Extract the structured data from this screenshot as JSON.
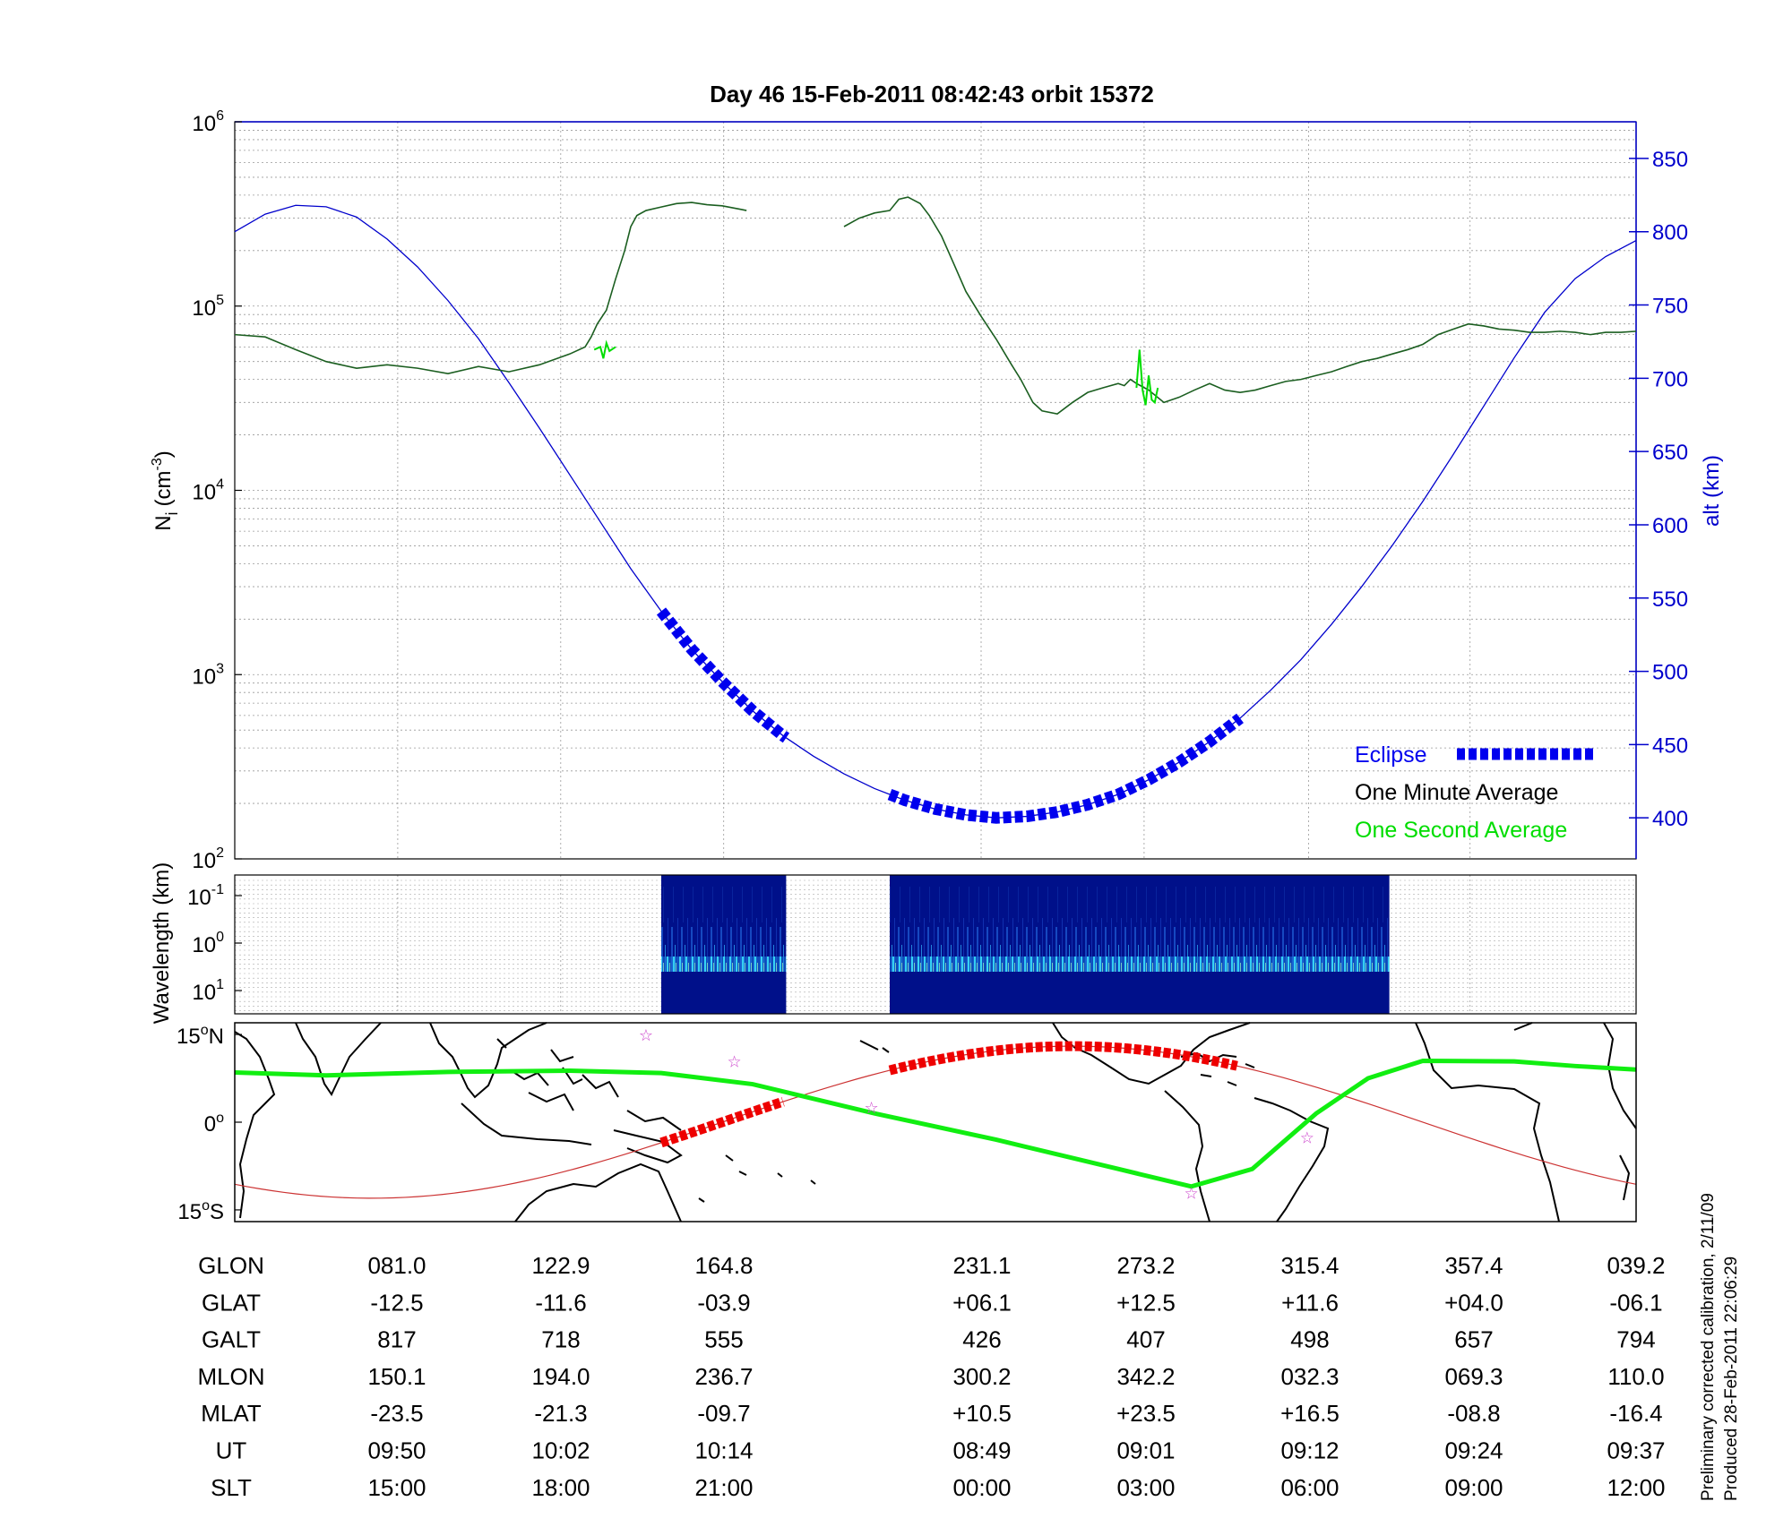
{
  "chart_data": [
    {
      "type": "line",
      "title": "Day 46  15-Feb-2011 08:42:43   orbit 15372",
      "ylabel_left": "N",
      "ylabel_left_sub": "i",
      "ylabel_left_unit_pre": "(cm",
      "ylabel_left_unit_sup": "-3",
      "ylabel_left_unit_post": ")",
      "ylabel_right": "alt (km)",
      "y_left_scale": "log",
      "y_left_range": [
        100,
        1000000
      ],
      "y_left_ticks": [
        {
          "base": "10",
          "exp": "2"
        },
        {
          "base": "10",
          "exp": "3"
        },
        {
          "base": "10",
          "exp": "4"
        },
        {
          "base": "10",
          "exp": "5"
        },
        {
          "base": "10",
          "exp": "6"
        }
      ],
      "y_right_range": [
        372,
        875
      ],
      "y_right_ticks": [
        "400",
        "450",
        "500",
        "550",
        "600",
        "650",
        "700",
        "750",
        "800",
        "850"
      ],
      "grid": true,
      "legend_placement": "bottom-right",
      "legend": [
        {
          "label": "Eclipse",
          "color": "#0000ee"
        },
        {
          "label": "One Minute Average",
          "color": "#000000"
        },
        {
          "label": "One Second Average",
          "color": "#00dd00"
        }
      ],
      "series": [
        {
          "name": "One Minute Average",
          "color": "#1b5e20",
          "segments": [
            {
              "x": [
                0,
                10,
                20,
                30,
                40,
                50,
                60,
                70,
                80,
                90,
                100,
                110,
                115,
                117,
                119,
                122,
                125,
                128,
                130,
                132,
                135,
                140,
                145,
                150,
                155,
                160,
                166,
                168
              ],
              "y": [
                70000,
                68000,
                58000,
                50000,
                46000,
                48000,
                46000,
                43000,
                47000,
                44000,
                48000,
                55000,
                60000,
                68000,
                80000,
                95000,
                140000,
                200000,
                270000,
                310000,
                330000,
                345000,
                360000,
                365000,
                355000,
                350000,
                335000,
                330000
              ]
            },
            {
              "x": [
                200,
                205,
                210,
                215,
                218,
                221,
                225,
                228,
                232,
                236,
                240,
                245,
                250,
                255,
                258,
                262,
                265,
                270,
                275,
                280,
                285,
                290,
                292,
                294,
                296,
                300,
                305,
                310,
                315,
                320,
                325,
                330,
                335,
                340,
                345,
                350,
                355,
                360,
                365,
                370,
                375,
                380,
                385,
                390,
                395,
                400,
                405,
                410,
                415,
                420,
                425,
                430,
                435,
                440,
                445,
                450,
                455,
                460
              ],
              "y": [
                270000,
                300000,
                320000,
                330000,
                380000,
                390000,
                360000,
                310000,
                240000,
                170000,
                120000,
                88000,
                66000,
                48000,
                40000,
                30000,
                27000,
                26000,
                30000,
                34000,
                36000,
                38000,
                37000,
                40000,
                38000,
                35000,
                30000,
                32000,
                35000,
                38000,
                35000,
                34000,
                35000,
                37000,
                39000,
                40000,
                42000,
                44000,
                47000,
                50000,
                52000,
                55000,
                58000,
                62000,
                70000,
                75000,
                80000,
                78000,
                75000,
                74000,
                72000,
                72000,
                73000,
                72000,
                70000,
                72000,
                72000,
                73000
              ]
            }
          ]
        },
        {
          "name": "One Second Average",
          "color": "#00dd00",
          "segments": [
            {
              "x": [
                118,
                120,
                121,
                122,
                123,
                125
              ],
              "y": [
                58000,
                60000,
                52000,
                63000,
                57000,
                60000
              ]
            },
            {
              "x": [
                296,
                297,
                298,
                299,
                300,
                301,
                302,
                303
              ],
              "y": [
                36000,
                58000,
                35000,
                29000,
                42000,
                31000,
                30000,
                36000
              ]
            }
          ]
        },
        {
          "name": "alt",
          "axis": "right",
          "color": "#0000cc",
          "x": [
            0,
            10,
            20,
            30,
            40,
            50,
            60,
            70,
            80,
            90,
            100,
            110,
            120,
            130,
            140,
            150,
            160,
            170,
            180,
            190,
            200,
            210,
            220,
            230,
            240,
            250,
            260,
            270,
            280,
            290,
            300,
            310,
            320,
            330,
            340,
            350,
            360,
            370,
            380,
            390,
            400,
            410,
            420,
            430,
            440,
            450,
            460
          ],
          "y": [
            800,
            812,
            818,
            817,
            810,
            795,
            776,
            753,
            727,
            697,
            666,
            634,
            602,
            570,
            541,
            515,
            493,
            473,
            456,
            442,
            430,
            420,
            412,
            406,
            402,
            400,
            401,
            404,
            409,
            416,
            426,
            438,
            452,
            468,
            487,
            508,
            532,
            558,
            586,
            616,
            648,
            681,
            714,
            745,
            768,
            783,
            794
          ]
        }
      ],
      "eclipse_segments": [
        [
          140,
          181
        ],
        [
          215,
          330
        ]
      ],
      "x_markers": [
        53.5,
        107,
        160.5,
        245,
        298.5,
        352.5,
        405.5,
        460
      ]
    },
    {
      "type": "heatmap",
      "ylabel": "Wavelength (km)",
      "y_ticks": [
        {
          "base": "10",
          "exp": "-1"
        },
        {
          "base": "10",
          "exp": "0"
        },
        {
          "base": "10",
          "exp": "1"
        }
      ],
      "data_blocks": [
        [
          140,
          181
        ],
        [
          215,
          379
        ]
      ]
    },
    {
      "type": "map",
      "y_ticks": [
        {
          "num": "15",
          "sup": "o",
          "hem": "N"
        },
        {
          "num": "0",
          "sup": "o",
          "hem": ""
        },
        {
          "num": "15",
          "sup": "o",
          "hem": "S"
        }
      ],
      "lat_range": [
        -17,
        17
      ]
    }
  ],
  "table": {
    "rows": [
      {
        "label": "GLON",
        "values": [
          "081.0",
          "122.9",
          "164.8",
          "231.1",
          "273.2",
          "315.4",
          "357.4",
          "039.2"
        ]
      },
      {
        "label": "GLAT",
        "values": [
          "-12.5",
          "-11.6",
          "-03.9",
          "+06.1",
          "+12.5",
          "+11.6",
          "+04.0",
          "-06.1"
        ]
      },
      {
        "label": "GALT",
        "values": [
          "817",
          "718",
          "555",
          "426",
          "407",
          "498",
          "657",
          "794"
        ]
      },
      {
        "label": "MLON",
        "values": [
          "150.1",
          "194.0",
          "236.7",
          "300.2",
          "342.2",
          "032.3",
          "069.3",
          "110.0"
        ]
      },
      {
        "label": "MLAT",
        "values": [
          "-23.5",
          "-21.3",
          "-09.7",
          "+10.5",
          "+23.5",
          "+16.5",
          "-08.8",
          "-16.4"
        ]
      },
      {
        "label": "UT",
        "values": [
          "09:50",
          "10:02",
          "10:14",
          "08:49",
          "09:01",
          "09:12",
          "09:24",
          "09:37"
        ]
      },
      {
        "label": "SLT",
        "values": [
          "15:00",
          "18:00",
          "21:00",
          "00:00",
          "03:00",
          "06:00",
          "09:00",
          "12:00"
        ]
      }
    ]
  },
  "footer": {
    "line1": "Preliminary corrected calibration, 2/11/09",
    "line2": "Produced 28-Feb-2011 22:06:29"
  },
  "colors": {
    "axis_blue": "#0000cc",
    "eclipse": "#0000ee",
    "track_green": "#11ee11",
    "track_red": "#ee0000",
    "orbit_line": "#cc3333",
    "spectro_bg": "#00108a",
    "star": "#cc44cc"
  }
}
